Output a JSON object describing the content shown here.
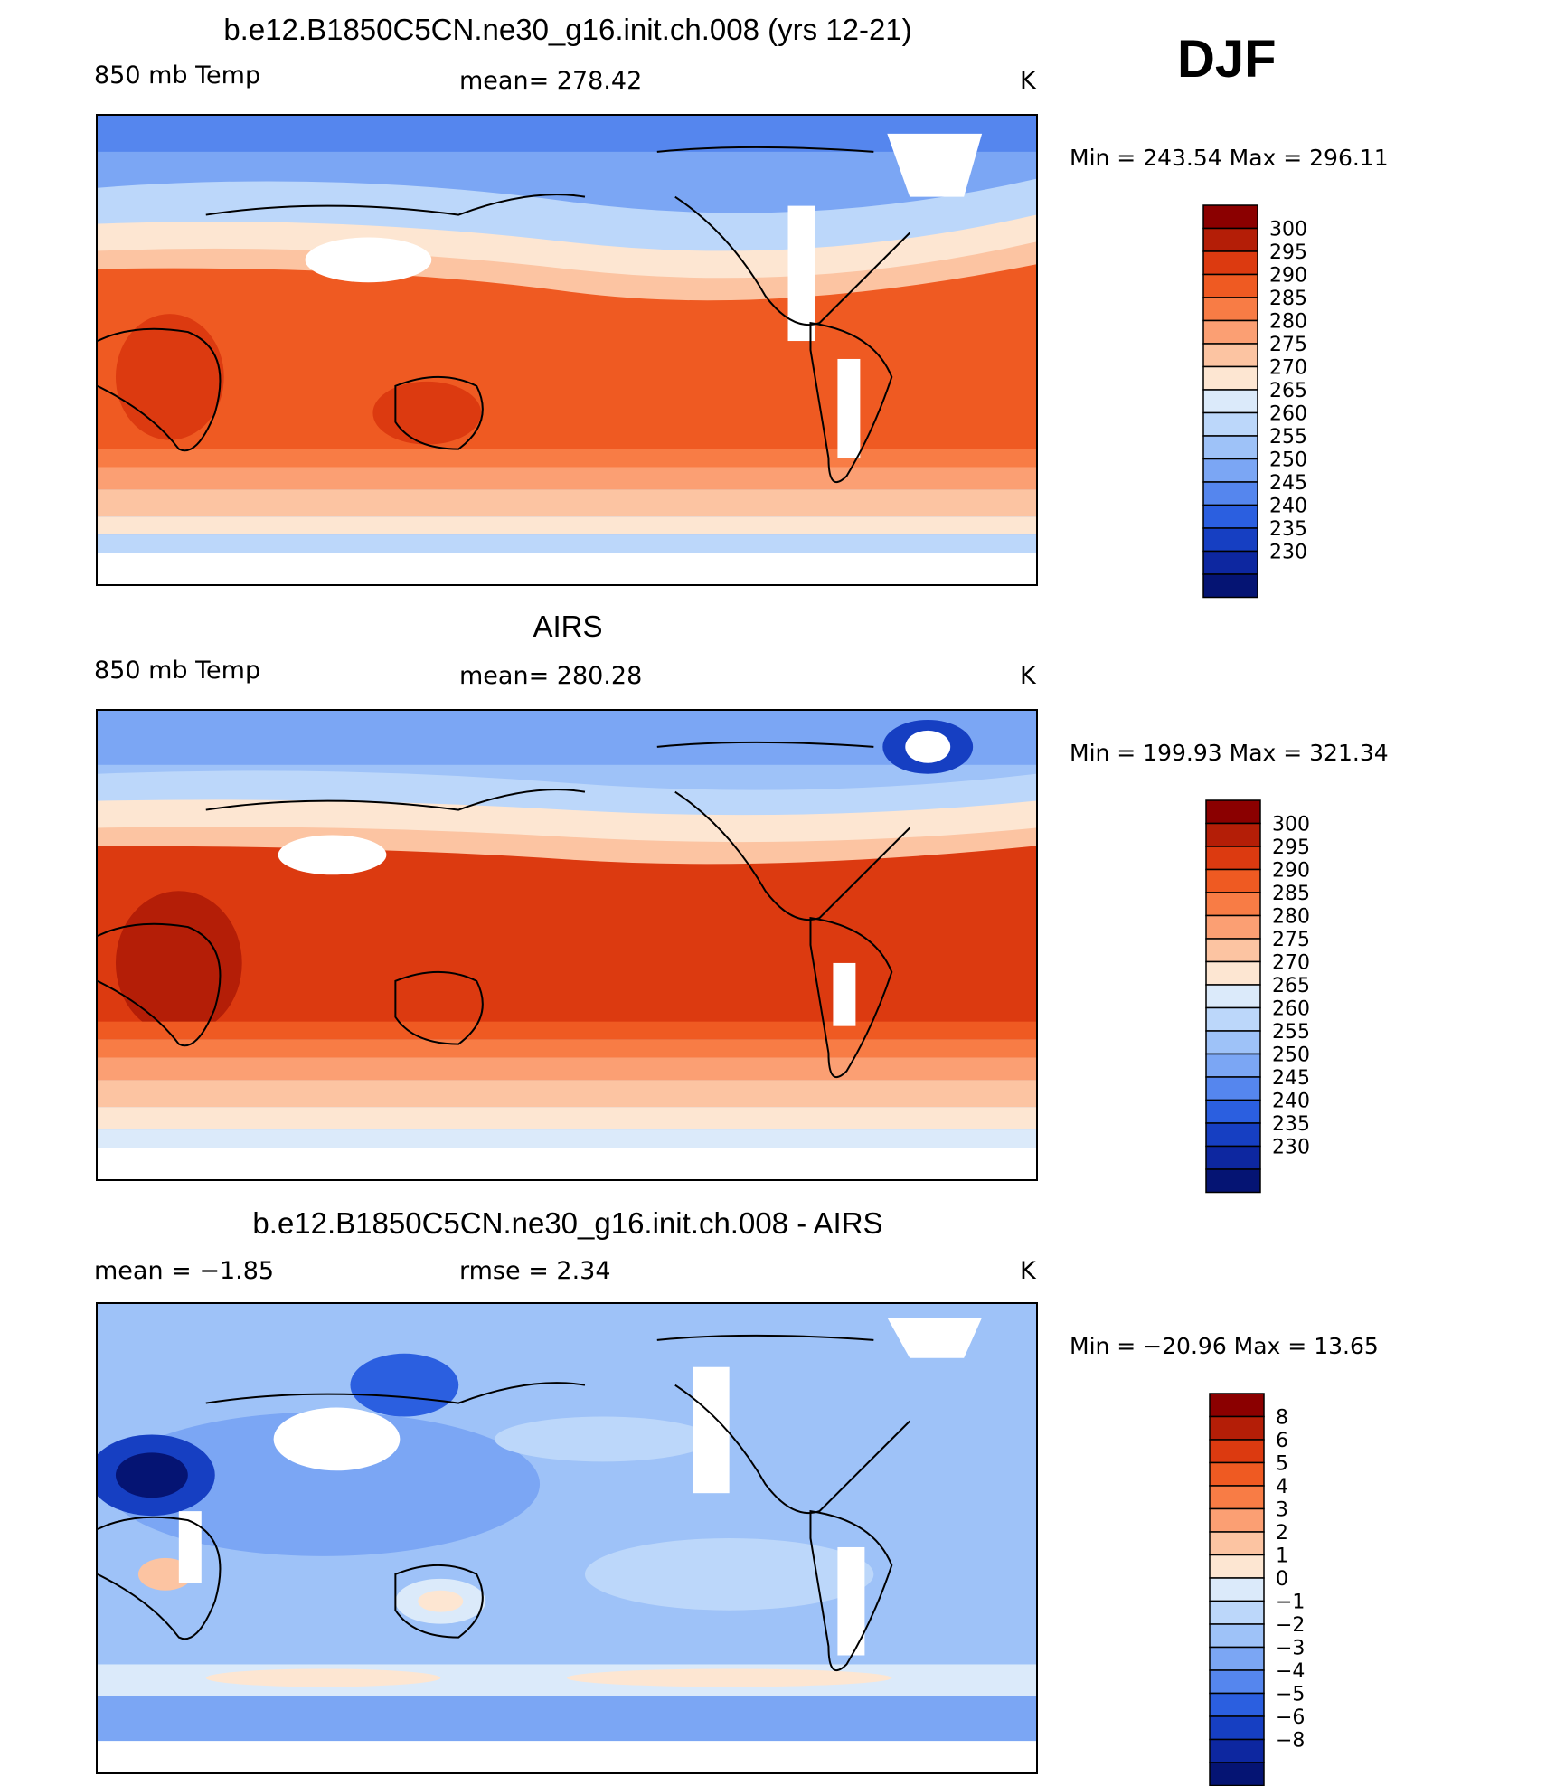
{
  "season": "DJF",
  "panels": [
    {
      "id": "model",
      "title": "b.e12.B1850C5CN.ne30_g16.init.ch.008 (yrs 12-21)",
      "variable": "850 mb Temp",
      "stat": "mean=  278.42",
      "units": "K",
      "minmax": "Min  =  243.54  Max  =  296.11",
      "colorbar": {
        "labels": [
          "300",
          "295",
          "290",
          "285",
          "280",
          "275",
          "270",
          "265",
          "260",
          "255",
          "250",
          "245",
          "240",
          "235",
          "230"
        ],
        "colors": [
          "#8b0000",
          "#b41e07",
          "#dc3a10",
          "#ef5a22",
          "#f87c45",
          "#fb9f73",
          "#fcc4a2",
          "#fde6d2",
          "#dbeafa",
          "#bcd7fa",
          "#9ec2f8",
          "#7ba6f4",
          "#5586ee",
          "#2b5fe0",
          "#163fc2",
          "#0d27a0",
          "#051473"
        ]
      }
    },
    {
      "id": "obs",
      "title": "AIRS",
      "variable": "850 mb Temp",
      "stat": "mean=  280.28",
      "units": "K",
      "minmax": "Min  =  199.93  Max  =  321.34",
      "colorbar": {
        "labels": [
          "300",
          "295",
          "290",
          "285",
          "280",
          "275",
          "270",
          "265",
          "260",
          "255",
          "250",
          "245",
          "240",
          "235",
          "230"
        ],
        "colors": [
          "#8b0000",
          "#b41e07",
          "#dc3a10",
          "#ef5a22",
          "#f87c45",
          "#fb9f73",
          "#fcc4a2",
          "#fde6d2",
          "#dbeafa",
          "#bcd7fa",
          "#9ec2f8",
          "#7ba6f4",
          "#5586ee",
          "#2b5fe0",
          "#163fc2",
          "#0d27a0",
          "#051473"
        ]
      }
    },
    {
      "id": "diff",
      "title": "b.e12.B1850C5CN.ne30_g16.init.ch.008 - AIRS",
      "variable": "mean  =    −1.85",
      "stat": "rmse  =     2.34",
      "units": "K",
      "minmax": "Min  =  −20.96  Max  =    13.65",
      "colorbar": {
        "labels": [
          "8",
          "6",
          "5",
          "4",
          "3",
          "2",
          "1",
          "0",
          "−1",
          "−2",
          "−3",
          "−4",
          "−5",
          "−6",
          "−8"
        ],
        "colors": [
          "#8b0000",
          "#b41e07",
          "#dc3a10",
          "#ef5a22",
          "#f87c45",
          "#fb9f73",
          "#fcc4a2",
          "#fde6d2",
          "#dbeafa",
          "#bcd7fa",
          "#9ec2f8",
          "#7ba6f4",
          "#5586ee",
          "#2b5fe0",
          "#163fc2",
          "#0d27a0",
          "#051473"
        ]
      }
    }
  ],
  "colors": {
    "land_outline": "#000000",
    "missing": "#ffffff"
  }
}
